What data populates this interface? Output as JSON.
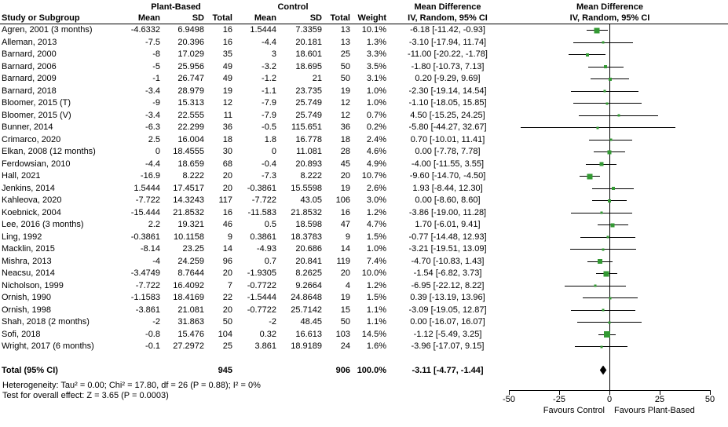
{
  "header": {
    "study": "Study or Subgroup",
    "group1": "Plant-Based",
    "group2": "Control",
    "mean": "Mean",
    "sd": "SD",
    "total": "Total",
    "weight": "Weight",
    "md": "Mean Difference",
    "ci": "IV, Random, 95% CI"
  },
  "chart_data": {
    "type": "forest",
    "effect_measure": "Mean Difference, IV, Random, 95% CI",
    "xlim": [
      -50,
      50
    ],
    "ticks": [
      -50,
      -25,
      0,
      25,
      50
    ],
    "favours_left": "Favours Control",
    "favours_right": "Favours Plant-Based",
    "marker_color": "#339933",
    "studies": [
      {
        "study": "Agren, 2001 (3 months)",
        "pb_mean": "-4.6332",
        "pb_sd": "6.9498",
        "pb_total": "16",
        "c_mean": "1.5444",
        "c_sd": "7.3359",
        "c_total": "13",
        "weight": "10.1%",
        "ci_text": "-6.18 [-11.42, -0.93]",
        "md": -6.18,
        "lo": -11.42,
        "hi": -0.93,
        "w": 10.1
      },
      {
        "study": "Alleman, 2013",
        "pb_mean": "-7.5",
        "pb_sd": "20.396",
        "pb_total": "16",
        "c_mean": "-4.4",
        "c_sd": "20.181",
        "c_total": "13",
        "weight": "1.3%",
        "ci_text": "-3.10 [-17.94, 11.74]",
        "md": -3.1,
        "lo": -17.94,
        "hi": 11.74,
        "w": 1.3
      },
      {
        "study": "Barnard, 2000",
        "pb_mean": "-8",
        "pb_sd": "17.029",
        "pb_total": "35",
        "c_mean": "3",
        "c_sd": "18.601",
        "c_total": "25",
        "weight": "3.3%",
        "ci_text": "-11.00 [-20.22, -1.78]",
        "md": -11.0,
        "lo": -20.22,
        "hi": -1.78,
        "w": 3.3
      },
      {
        "study": "Barnard, 2006",
        "pb_mean": "-5",
        "pb_sd": "25.956",
        "pb_total": "49",
        "c_mean": "-3.2",
        "c_sd": "18.695",
        "c_total": "50",
        "weight": "3.5%",
        "ci_text": "-1.80 [-10.73, 7.13]",
        "md": -1.8,
        "lo": -10.73,
        "hi": 7.13,
        "w": 3.5
      },
      {
        "study": "Barnard, 2009",
        "pb_mean": "-1",
        "pb_sd": "26.747",
        "pb_total": "49",
        "c_mean": "-1.2",
        "c_sd": "21",
        "c_total": "50",
        "weight": "3.1%",
        "ci_text": "0.20 [-9.29, 9.69]",
        "md": 0.2,
        "lo": -9.29,
        "hi": 9.69,
        "w": 3.1
      },
      {
        "study": "Barnard, 2018",
        "pb_mean": "-3.4",
        "pb_sd": "28.979",
        "pb_total": "19",
        "c_mean": "-1.1",
        "c_sd": "23.735",
        "c_total": "19",
        "weight": "1.0%",
        "ci_text": "-2.30 [-19.14, 14.54]",
        "md": -2.3,
        "lo": -19.14,
        "hi": 14.54,
        "w": 1.0
      },
      {
        "study": "Bloomer, 2015 (T)",
        "pb_mean": "-9",
        "pb_sd": "15.313",
        "pb_total": "12",
        "c_mean": "-7.9",
        "c_sd": "25.749",
        "c_total": "12",
        "weight": "1.0%",
        "ci_text": "-1.10 [-18.05, 15.85]",
        "md": -1.1,
        "lo": -18.05,
        "hi": 15.85,
        "w": 1.0
      },
      {
        "study": "Bloomer, 2015 (V)",
        "pb_mean": "-3.4",
        "pb_sd": "22.555",
        "pb_total": "11",
        "c_mean": "-7.9",
        "c_sd": "25.749",
        "c_total": "12",
        "weight": "0.7%",
        "ci_text": "4.50 [-15.25, 24.25]",
        "md": 4.5,
        "lo": -15.25,
        "hi": 24.25,
        "w": 0.7
      },
      {
        "study": "Bunner, 2014",
        "pb_mean": "-6.3",
        "pb_sd": "22.299",
        "pb_total": "36",
        "c_mean": "-0.5",
        "c_sd": "115.651",
        "c_total": "36",
        "weight": "0.2%",
        "ci_text": "-5.80 [-44.27, 32.67]",
        "md": -5.8,
        "lo": -44.27,
        "hi": 32.67,
        "w": 0.2
      },
      {
        "study": "Crimarco, 2020",
        "pb_mean": "2.5",
        "pb_sd": "16.004",
        "pb_total": "18",
        "c_mean": "1.8",
        "c_sd": "16.778",
        "c_total": "18",
        "weight": "2.4%",
        "ci_text": "0.70 [-10.01, 11.41]",
        "md": 0.7,
        "lo": -10.01,
        "hi": 11.41,
        "w": 2.4
      },
      {
        "study": "Elkan, 2008 (12 months)",
        "pb_mean": "0",
        "pb_sd": "18.4555",
        "pb_total": "30",
        "c_mean": "0",
        "c_sd": "11.081",
        "c_total": "28",
        "weight": "4.6%",
        "ci_text": "0.00 [-7.78, 7.78]",
        "md": 0.0,
        "lo": -7.78,
        "hi": 7.78,
        "w": 4.6
      },
      {
        "study": "Ferdowsian, 2010",
        "pb_mean": "-4.4",
        "pb_sd": "18.659",
        "pb_total": "68",
        "c_mean": "-0.4",
        "c_sd": "20.893",
        "c_total": "45",
        "weight": "4.9%",
        "ci_text": "-4.00 [-11.55, 3.55]",
        "md": -4.0,
        "lo": -11.55,
        "hi": 3.55,
        "w": 4.9
      },
      {
        "study": "Hall, 2021",
        "pb_mean": "-16.9",
        "pb_sd": "8.222",
        "pb_total": "20",
        "c_mean": "-7.3",
        "c_sd": "8.222",
        "c_total": "20",
        "weight": "10.7%",
        "ci_text": "-9.60 [-14.70, -4.50]",
        "md": -9.6,
        "lo": -14.7,
        "hi": -4.5,
        "w": 10.7
      },
      {
        "study": "Jenkins, 2014",
        "pb_mean": "1.5444",
        "pb_sd": "17.4517",
        "pb_total": "20",
        "c_mean": "-0.3861",
        "c_sd": "15.5598",
        "c_total": "19",
        "weight": "2.6%",
        "ci_text": "1.93 [-8.44, 12.30]",
        "md": 1.93,
        "lo": -8.44,
        "hi": 12.3,
        "w": 2.6
      },
      {
        "study": "Kahleova, 2020",
        "pb_mean": "-7.722",
        "pb_sd": "14.3243",
        "pb_total": "117",
        "c_mean": "-7.722",
        "c_sd": "43.05",
        "c_total": "106",
        "weight": "3.0%",
        "ci_text": "0.00 [-8.60, 8.60]",
        "md": 0.0,
        "lo": -8.6,
        "hi": 8.6,
        "w": 3.0
      },
      {
        "study": "Koebnick, 2004",
        "pb_mean": "-15.444",
        "pb_sd": "21.8532",
        "pb_total": "16",
        "c_mean": "-11.583",
        "c_sd": "21.8532",
        "c_total": "16",
        "weight": "1.2%",
        "ci_text": "-3.86 [-19.00, 11.28]",
        "md": -3.86,
        "lo": -19.0,
        "hi": 11.28,
        "w": 1.2
      },
      {
        "study": "Lee, 2016 (3 months)",
        "pb_mean": "2.2",
        "pb_sd": "19.321",
        "pb_total": "46",
        "c_mean": "0.5",
        "c_sd": "18.598",
        "c_total": "47",
        "weight": "4.7%",
        "ci_text": "1.70 [-6.01, 9.41]",
        "md": 1.7,
        "lo": -6.01,
        "hi": 9.41,
        "w": 4.7
      },
      {
        "study": "Ling, 1992",
        "pb_mean": "-0.3861",
        "pb_sd": "10.1158",
        "pb_total": "9",
        "c_mean": "0.3861",
        "c_sd": "18.3783",
        "c_total": "9",
        "weight": "1.5%",
        "ci_text": "-0.77 [-14.48, 12.93]",
        "md": -0.77,
        "lo": -14.48,
        "hi": 12.93,
        "w": 1.5
      },
      {
        "study": "Macklin, 2015",
        "pb_mean": "-8.14",
        "pb_sd": "23.25",
        "pb_total": "14",
        "c_mean": "-4.93",
        "c_sd": "20.686",
        "c_total": "14",
        "weight": "1.0%",
        "ci_text": "-3.21 [-19.51, 13.09]",
        "md": -3.21,
        "lo": -19.51,
        "hi": 13.09,
        "w": 1.0
      },
      {
        "study": "Mishra, 2013",
        "pb_mean": "-4",
        "pb_sd": "24.259",
        "pb_total": "96",
        "c_mean": "0.7",
        "c_sd": "20.841",
        "c_total": "119",
        "weight": "7.4%",
        "ci_text": "-4.70 [-10.83, 1.43]",
        "md": -4.7,
        "lo": -10.83,
        "hi": 1.43,
        "w": 7.4
      },
      {
        "study": "Neacsu, 2014",
        "pb_mean": "-3.4749",
        "pb_sd": "8.7644",
        "pb_total": "20",
        "c_mean": "-1.9305",
        "c_sd": "8.2625",
        "c_total": "20",
        "weight": "10.0%",
        "ci_text": "-1.54 [-6.82, 3.73]",
        "md": -1.54,
        "lo": -6.82,
        "hi": 3.73,
        "w": 10.0
      },
      {
        "study": "Nicholson, 1999",
        "pb_mean": "-7.722",
        "pb_sd": "16.4092",
        "pb_total": "7",
        "c_mean": "-0.7722",
        "c_sd": "9.2664",
        "c_total": "4",
        "weight": "1.2%",
        "ci_text": "-6.95 [-22.12, 8.22]",
        "md": -6.95,
        "lo": -22.12,
        "hi": 8.22,
        "w": 1.2
      },
      {
        "study": "Ornish, 1990",
        "pb_mean": "-1.1583",
        "pb_sd": "18.4169",
        "pb_total": "22",
        "c_mean": "-1.5444",
        "c_sd": "24.8648",
        "c_total": "19",
        "weight": "1.5%",
        "ci_text": "0.39 [-13.19, 13.96]",
        "md": 0.39,
        "lo": -13.19,
        "hi": 13.96,
        "w": 1.5
      },
      {
        "study": "Ornish, 1998",
        "pb_mean": "-3.861",
        "pb_sd": "21.081",
        "pb_total": "20",
        "c_mean": "-0.7722",
        "c_sd": "25.7142",
        "c_total": "15",
        "weight": "1.1%",
        "ci_text": "-3.09 [-19.05, 12.87]",
        "md": -3.09,
        "lo": -19.05,
        "hi": 12.87,
        "w": 1.1
      },
      {
        "study": "Shah, 2018 (2 months)",
        "pb_mean": "-2",
        "pb_sd": "31.863",
        "pb_total": "50",
        "c_mean": "-2",
        "c_sd": "48.45",
        "c_total": "50",
        "weight": "1.1%",
        "ci_text": "0.00 [-16.07, 16.07]",
        "md": 0.0,
        "lo": -16.07,
        "hi": 16.07,
        "w": 1.1
      },
      {
        "study": "Sofi, 2018",
        "pb_mean": "-0.8",
        "pb_sd": "15.476",
        "pb_total": "104",
        "c_mean": "0.32",
        "c_sd": "16.613",
        "c_total": "103",
        "weight": "14.5%",
        "ci_text": "-1.12 [-5.49, 3.25]",
        "md": -1.12,
        "lo": -5.49,
        "hi": 3.25,
        "w": 14.5
      },
      {
        "study": "Wright, 2017 (6 months)",
        "pb_mean": "-0.1",
        "pb_sd": "27.2972",
        "pb_total": "25",
        "c_mean": "3.861",
        "c_sd": "18.9189",
        "c_total": "24",
        "weight": "1.6%",
        "ci_text": "-3.96 [-17.07, 9.15]",
        "md": -3.96,
        "lo": -17.07,
        "hi": 9.15,
        "w": 1.6
      }
    ],
    "total": {
      "label": "Total (95% CI)",
      "pb_total": "945",
      "c_total": "906",
      "weight": "100.0%",
      "ci_text": "-3.11 [-4.77, -1.44]",
      "md": -3.11,
      "lo": -4.77,
      "hi": -1.44
    }
  },
  "footnotes": {
    "heterogeneity": "Heterogeneity: Tau² = 0.00; Chi² = 17.80, df = 26 (P = 0.88); I² = 0%",
    "overall_effect": "Test for overall effect: Z = 3.65 (P = 0.0003)"
  }
}
